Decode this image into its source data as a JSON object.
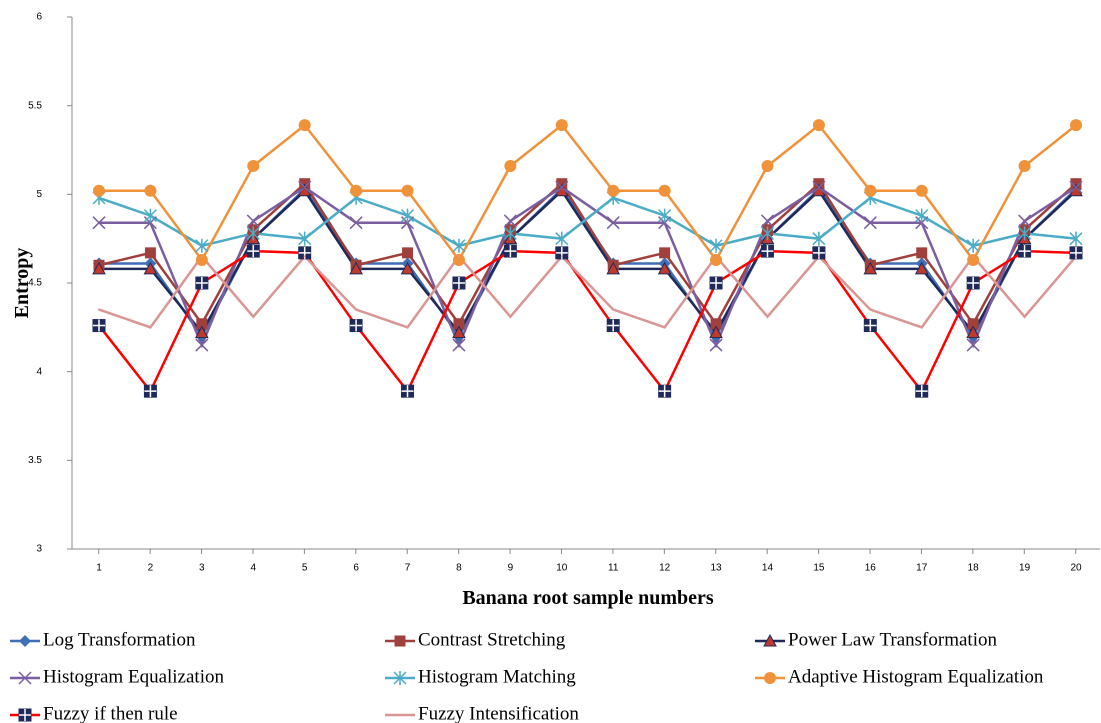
{
  "chart_data": {
    "type": "line",
    "y_label": "Entropy",
    "x_label": "Banana root sample numbers",
    "categories": [
      "1",
      "2",
      "3",
      "4",
      "5",
      "6",
      "7",
      "8",
      "9",
      "10",
      "11",
      "12",
      "13",
      "14",
      "15",
      "16",
      "17",
      "18",
      "19",
      "20"
    ],
    "ylim": [
      3,
      6
    ],
    "yticks": [
      3,
      3.5,
      4,
      4.5,
      5,
      5.5,
      6
    ],
    "series": [
      {
        "name": "Log Transformation",
        "color": "#3f6fb5",
        "marker": "diamond",
        "values": [
          4.61,
          4.61,
          4.2,
          4.75,
          5.03,
          4.61,
          4.61,
          4.2,
          4.75,
          5.03,
          4.61,
          4.61,
          4.2,
          4.75,
          5.03,
          4.61,
          4.61,
          4.2,
          4.75,
          5.03
        ]
      },
      {
        "name": "Contrast Stretching",
        "color": "#a0403c",
        "marker": "square",
        "values": [
          4.6,
          4.67,
          4.27,
          4.8,
          5.06,
          4.6,
          4.67,
          4.27,
          4.8,
          5.06,
          4.6,
          4.67,
          4.27,
          4.8,
          5.06,
          4.6,
          4.67,
          4.27,
          4.8,
          5.06
        ]
      },
      {
        "name": "Power Law Transformation",
        "color": "#1f2a5a",
        "marker": "triangle",
        "values": [
          4.58,
          4.58,
          4.22,
          4.75,
          5.02,
          4.58,
          4.58,
          4.22,
          4.75,
          5.02,
          4.58,
          4.58,
          4.22,
          4.75,
          5.02,
          4.58,
          4.58,
          4.22,
          4.75,
          5.02
        ]
      },
      {
        "name": "Histogram Equalization",
        "color": "#7a5ea0",
        "marker": "x",
        "values": [
          4.84,
          4.84,
          4.15,
          4.85,
          5.04,
          4.84,
          4.84,
          4.15,
          4.85,
          5.04,
          4.84,
          4.84,
          4.15,
          4.85,
          5.04,
          4.84,
          4.84,
          4.15,
          4.85,
          5.04
        ]
      },
      {
        "name": "Histogram Matching",
        "color": "#4aacc6",
        "marker": "star",
        "values": [
          4.98,
          4.88,
          4.71,
          4.78,
          4.75,
          4.98,
          4.88,
          4.71,
          4.78,
          4.75,
          4.98,
          4.88,
          4.71,
          4.78,
          4.75,
          4.98,
          4.88,
          4.71,
          4.78,
          4.75
        ]
      },
      {
        "name": "Adaptive Histogram Equalization",
        "color": "#f0923a",
        "marker": "circle",
        "values": [
          5.02,
          5.02,
          4.63,
          5.16,
          5.39,
          5.02,
          5.02,
          4.63,
          5.16,
          5.39,
          5.02,
          5.02,
          4.63,
          5.16,
          5.39,
          5.02,
          5.02,
          4.63,
          5.16,
          5.39
        ]
      },
      {
        "name": "Fuzzy if then rule",
        "color": "#ff0000",
        "marker": "boxcross",
        "values": [
          4.26,
          3.89,
          4.5,
          4.68,
          4.67,
          4.26,
          3.89,
          4.5,
          4.68,
          4.67,
          4.26,
          3.89,
          4.5,
          4.68,
          4.67,
          4.26,
          3.89,
          4.5,
          4.68,
          4.67
        ]
      },
      {
        "name": "Fuzzy Intensification",
        "color": "#d99694",
        "marker": "none",
        "values": [
          4.35,
          4.25,
          4.65,
          4.31,
          4.65,
          4.35,
          4.25,
          4.65,
          4.31,
          4.65,
          4.35,
          4.25,
          4.65,
          4.31,
          4.65,
          4.35,
          4.25,
          4.65,
          4.31,
          4.65
        ]
      }
    ]
  }
}
